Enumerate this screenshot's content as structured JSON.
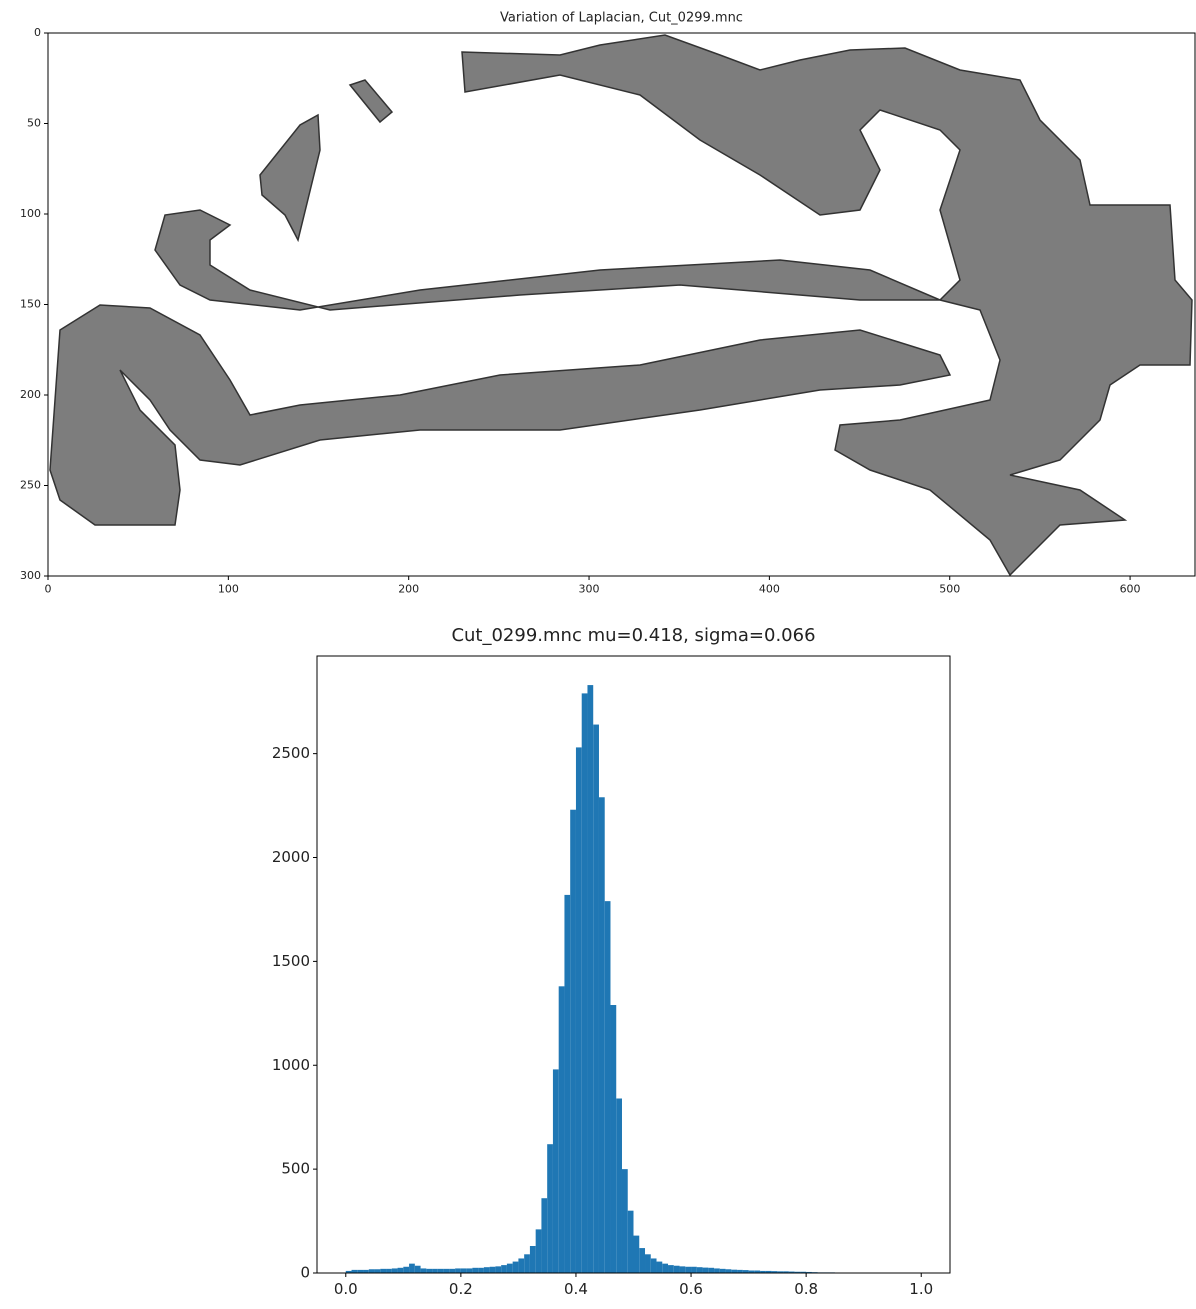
{
  "chart_data": [
    {
      "type": "image",
      "title": "Variation of Laplacian, Cut_0299.mnc",
      "xlim": [
        0,
        636
      ],
      "ylim": [
        300,
        0
      ],
      "xticks": [
        0,
        100,
        200,
        300,
        400,
        500,
        600
      ],
      "yticks": [
        0,
        50,
        100,
        150,
        200,
        250,
        300
      ]
    },
    {
      "type": "histogram",
      "title": "Cut_0299.mnc mu=0.418, sigma=0.066",
      "color": "#1f77b4",
      "bins": [
        0,
        0.01,
        0.02,
        0.03,
        0.04,
        0.05,
        0.06,
        0.07,
        0.08,
        0.09,
        0.1,
        0.11,
        0.12,
        0.13,
        0.14,
        0.15,
        0.16,
        0.17,
        0.18,
        0.19,
        0.2,
        0.21,
        0.22,
        0.23,
        0.24,
        0.25,
        0.26,
        0.27,
        0.28,
        0.29,
        0.3,
        0.31,
        0.32,
        0.33,
        0.34,
        0.35,
        0.36,
        0.37,
        0.38,
        0.39,
        0.4,
        0.41,
        0.42,
        0.43,
        0.44,
        0.45,
        0.46,
        0.47,
        0.48,
        0.49,
        0.5,
        0.51,
        0.52,
        0.53,
        0.54,
        0.55,
        0.56,
        0.57,
        0.58,
        0.59,
        0.6,
        0.61,
        0.62,
        0.63,
        0.64,
        0.65,
        0.66,
        0.67,
        0.68,
        0.69,
        0.7,
        0.71,
        0.72,
        0.73,
        0.74,
        0.75,
        0.76,
        0.77,
        0.78,
        0.79,
        0.8,
        0.81,
        0.82,
        0.83,
        0.84,
        0.85,
        0.86
      ],
      "values": [
        10,
        15,
        15,
        15,
        18,
        18,
        20,
        20,
        22,
        25,
        30,
        45,
        35,
        22,
        20,
        20,
        20,
        20,
        20,
        22,
        22,
        22,
        25,
        25,
        28,
        30,
        32,
        38,
        45,
        55,
        70,
        90,
        130,
        210,
        360,
        620,
        980,
        1380,
        1820,
        2230,
        2530,
        2790,
        2830,
        2640,
        2290,
        1790,
        1290,
        840,
        500,
        300,
        180,
        120,
        90,
        70,
        55,
        45,
        38,
        35,
        32,
        30,
        30,
        28,
        26,
        25,
        22,
        20,
        18,
        16,
        15,
        14,
        12,
        12,
        10,
        10,
        9,
        8,
        8,
        7,
        6,
        6,
        5,
        4,
        3,
        3,
        3,
        2
      ],
      "xlim": [
        -0.05,
        1.05
      ],
      "ylim": [
        0,
        2970
      ],
      "xticks": [
        {
          "value": 0,
          "label": "0.0"
        },
        0.2,
        0.4,
        0.6,
        0.8,
        {
          "value": 1,
          "label": "1.0"
        }
      ],
      "yticks": [
        0,
        500,
        1000,
        1500,
        2000,
        2500
      ]
    }
  ]
}
